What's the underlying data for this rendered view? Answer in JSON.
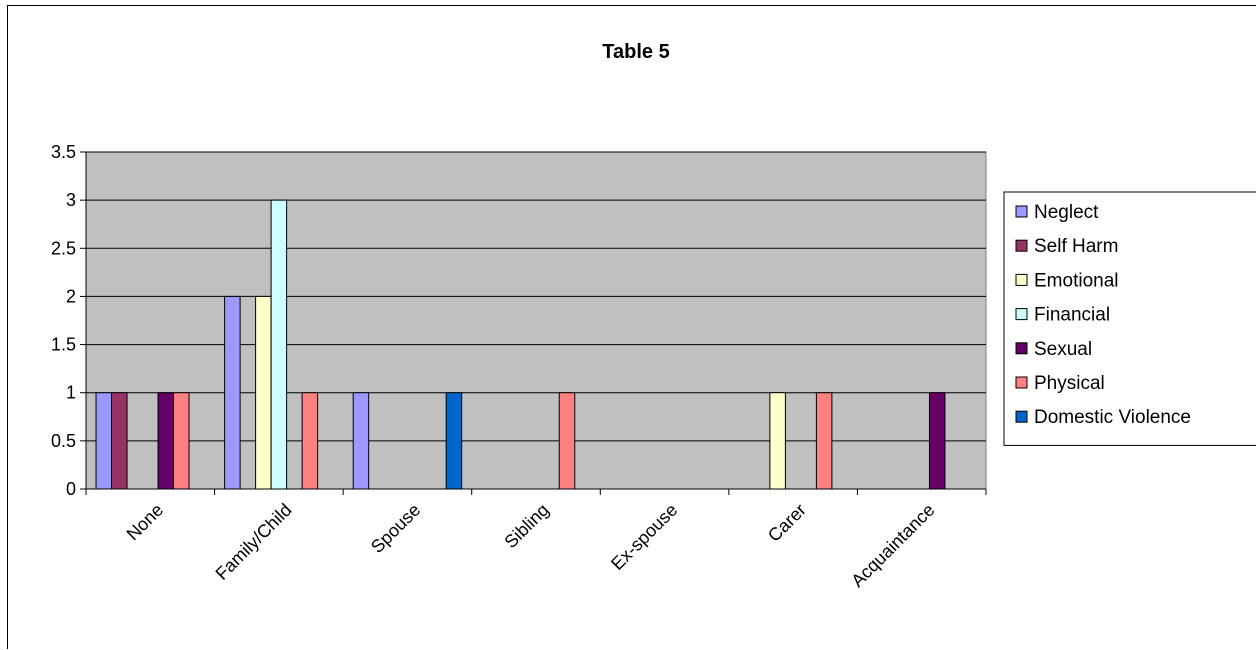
{
  "chart_data": {
    "type": "bar",
    "title": "Table 5",
    "xlabel": "",
    "ylabel": "",
    "ylim": [
      0,
      3.5
    ],
    "yticks": [
      "0",
      "0.5",
      "1",
      "1.5",
      "2",
      "2.5",
      "3",
      "3.5"
    ],
    "categories": [
      "None",
      "Family/Child",
      "Spouse",
      "Sibling",
      "Ex-spouse",
      "Carer",
      "Acquaintance"
    ],
    "grid": true,
    "legend_position": "right",
    "plot_background": "#c0c0c0",
    "series": [
      {
        "name": "Neglect",
        "color": "#9999ff",
        "values": [
          1,
          2,
          1,
          0,
          0,
          0,
          0
        ]
      },
      {
        "name": "Self Harm",
        "color": "#993366",
        "values": [
          1,
          0,
          0,
          0,
          0,
          0,
          0
        ]
      },
      {
        "name": "Emotional",
        "color": "#ffffcc",
        "values": [
          0,
          2,
          0,
          0,
          0,
          1,
          0
        ]
      },
      {
        "name": "Financial",
        "color": "#ccffff",
        "values": [
          0,
          3,
          0,
          0,
          0,
          0,
          0
        ]
      },
      {
        "name": "Sexual",
        "color": "#660066",
        "values": [
          1,
          0,
          0,
          0,
          0,
          0,
          1
        ]
      },
      {
        "name": "Physical",
        "color": "#ff8080",
        "values": [
          1,
          1,
          0,
          1,
          0,
          1,
          0
        ]
      },
      {
        "name": "Domestic Violence",
        "color": "#0066cc",
        "values": [
          0,
          0,
          1,
          0,
          0,
          0,
          0
        ]
      }
    ]
  }
}
